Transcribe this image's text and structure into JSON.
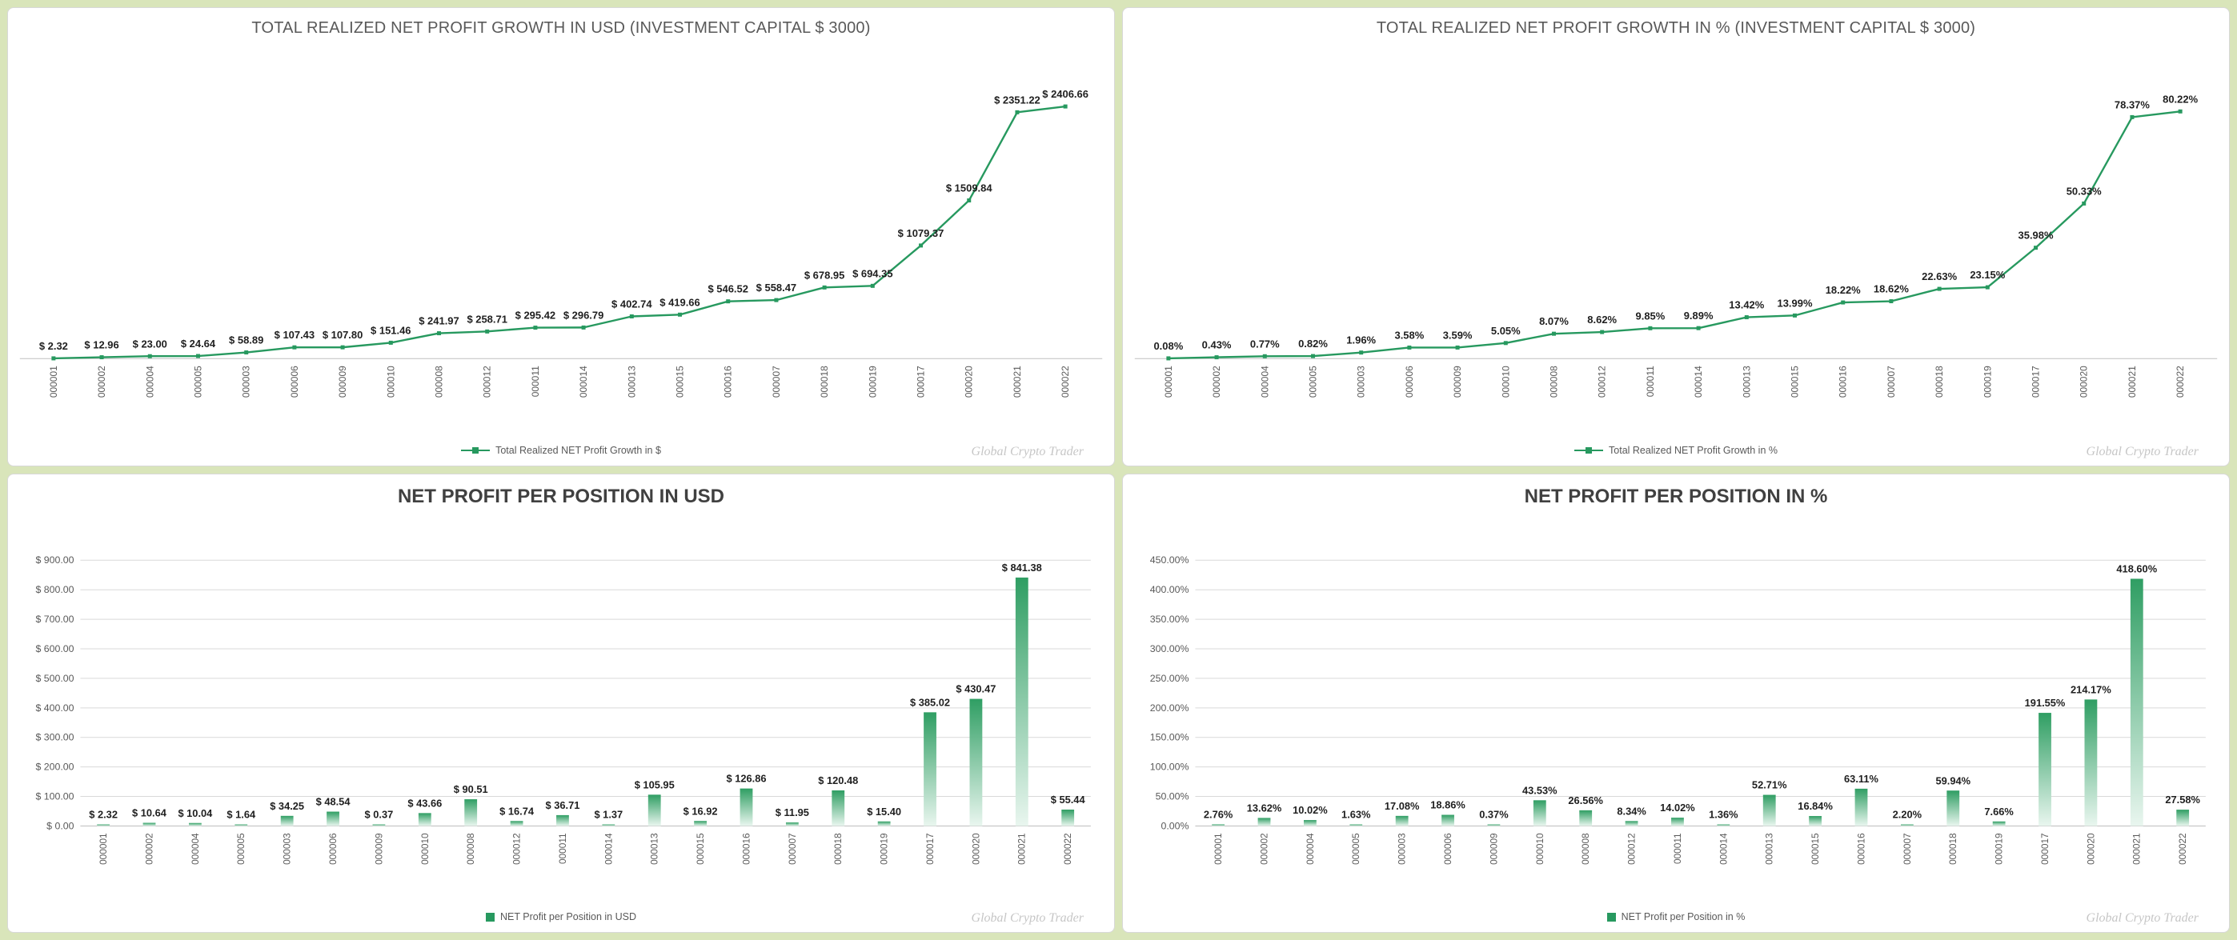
{
  "watermark": "Global Crypto Trader",
  "colors": {
    "accent_green": "#27995f",
    "bar_gradient_top": "#2f9e63",
    "bar_gradient_bottom": "#e9f6ef",
    "grid": "#d9d9d9",
    "axis": "#bfbfbf",
    "title_gray": "#595959",
    "label_dark": "#1f1f1f",
    "background": "#d9e5ba",
    "watermark_gray": "#c6c6c6"
  },
  "chart_data": [
    {
      "id": "total-growth-usd",
      "type": "line",
      "title": "TOTAL REALIZED NET PROFIT GROWTH IN USD (INVESTMENT CAPITAL $ 3000)",
      "legend_position": "bottom",
      "grid": false,
      "ylim": [
        0,
        2500
      ],
      "categories": [
        "000001",
        "000002",
        "000004",
        "000005",
        "000003",
        "000006",
        "000009",
        "000010",
        "000008",
        "000012",
        "000011",
        "000014",
        "000013",
        "000015",
        "000016",
        "000007",
        "000018",
        "000019",
        "000017",
        "000020",
        "000021",
        "000022"
      ],
      "series": [
        {
          "name": "Total Realized NET Profit Growth in $",
          "values": [
            2.32,
            12.96,
            23.0,
            24.64,
            58.89,
            107.43,
            107.8,
            151.46,
            241.97,
            258.71,
            295.42,
            296.79,
            402.74,
            419.66,
            546.52,
            558.47,
            678.95,
            694.35,
            1079.37,
            1509.84,
            2351.22,
            2406.66
          ]
        }
      ],
      "labels": [
        "$ 2.32",
        "$ 12.96",
        "$ 23.00",
        "$ 24.64",
        "$ 58.89",
        "$ 107.43",
        "$ 107.80",
        "$ 151.46",
        "$ 241.97",
        "$ 258.71",
        "$ 295.42",
        "$ 296.79",
        "$ 402.74",
        "$ 419.66",
        "$ 546.52",
        "$ 558.47",
        "$ 678.95",
        "$ 694.35",
        "$ 1079.37",
        "$ 1509.84",
        "$ 2351.22",
        "$ 2406.66"
      ]
    },
    {
      "id": "total-growth-pct",
      "type": "line",
      "title": "TOTAL REALIZED NET PROFIT GROWTH IN % (INVESTMENT CAPITAL $ 3000)",
      "legend_position": "bottom",
      "grid": false,
      "ylim": [
        0,
        85
      ],
      "categories": [
        "000001",
        "000002",
        "000004",
        "000005",
        "000003",
        "000006",
        "000009",
        "000010",
        "000008",
        "000012",
        "000011",
        "000014",
        "000013",
        "000015",
        "000016",
        "000007",
        "000018",
        "000019",
        "000017",
        "000020",
        "000021",
        "000022"
      ],
      "series": [
        {
          "name": "Total Realized NET Profit Growth in %",
          "values": [
            0.08,
            0.43,
            0.77,
            0.82,
            1.96,
            3.58,
            3.59,
            5.05,
            8.07,
            8.62,
            9.85,
            9.89,
            13.42,
            13.99,
            18.22,
            18.62,
            22.63,
            23.15,
            35.98,
            50.33,
            78.37,
            80.22
          ]
        }
      ],
      "labels": [
        "0.08%",
        "0.43%",
        "0.77%",
        "0.82%",
        "1.96%",
        "3.58%",
        "3.59%",
        "5.05%",
        "8.07%",
        "8.62%",
        "9.85%",
        "9.89%",
        "13.42%",
        "13.99%",
        "18.22%",
        "18.62%",
        "22.63%",
        "23.15%",
        "35.98%",
        "50.33%",
        "78.37%",
        "80.22%"
      ]
    },
    {
      "id": "profit-per-position-usd",
      "type": "bar",
      "title": "NET PROFIT PER POSITION IN USD",
      "legend_position": "bottom",
      "grid": true,
      "ylim": [
        0,
        900
      ],
      "yticks": [
        "$ 0.00",
        "$ 100.00",
        "$ 200.00",
        "$ 300.00",
        "$ 400.00",
        "$ 500.00",
        "$ 600.00",
        "$ 700.00",
        "$ 800.00",
        "$ 900.00"
      ],
      "categories": [
        "000001",
        "000002",
        "000004",
        "000005",
        "000003",
        "000006",
        "000009",
        "000010",
        "000008",
        "000012",
        "000011",
        "000014",
        "000013",
        "000015",
        "000016",
        "000007",
        "000018",
        "000019",
        "000017",
        "000020",
        "000021",
        "000022"
      ],
      "series": [
        {
          "name": "NET Profit per Position in USD",
          "values": [
            2.32,
            10.64,
            10.04,
            1.64,
            34.25,
            48.54,
            0.37,
            43.66,
            90.51,
            16.74,
            36.71,
            1.37,
            105.95,
            16.92,
            126.86,
            11.95,
            120.48,
            15.4,
            385.02,
            430.47,
            841.38,
            55.44
          ]
        }
      ],
      "labels": [
        "$ 2.32",
        "$ 10.64",
        "$ 10.04",
        "$ 1.64",
        "$ 34.25",
        "$ 48.54",
        "$ 0.37",
        "$ 43.66",
        "$ 90.51",
        "$ 16.74",
        "$ 36.71",
        "$ 1.37",
        "$ 105.95",
        "$ 16.92",
        "$ 126.86",
        "$ 11.95",
        "$ 120.48",
        "$ 15.40",
        "$ 385.02",
        "$ 430.47",
        "$ 841.38",
        "$ 55.44"
      ]
    },
    {
      "id": "profit-per-position-pct",
      "type": "bar",
      "title": "NET PROFIT PER POSITION IN %",
      "legend_position": "bottom",
      "grid": true,
      "ylim": [
        0,
        450
      ],
      "yticks": [
        "0.00%",
        "50.00%",
        "100.00%",
        "150.00%",
        "200.00%",
        "250.00%",
        "300.00%",
        "350.00%",
        "400.00%",
        "450.00%"
      ],
      "categories": [
        "000001",
        "000002",
        "000004",
        "000005",
        "000003",
        "000006",
        "000009",
        "000010",
        "000008",
        "000012",
        "000011",
        "000014",
        "000013",
        "000015",
        "000016",
        "000007",
        "000018",
        "000019",
        "000017",
        "000020",
        "000021",
        "000022"
      ],
      "series": [
        {
          "name": "NET Profit per Position in %",
          "values": [
            2.76,
            13.62,
            10.02,
            1.63,
            17.08,
            18.86,
            0.37,
            43.53,
            26.56,
            8.34,
            14.02,
            1.36,
            52.71,
            16.84,
            63.11,
            2.2,
            59.94,
            7.66,
            191.55,
            214.17,
            418.6,
            27.58
          ]
        }
      ],
      "labels": [
        "2.76%",
        "13.62%",
        "10.02%",
        "1.63%",
        "17.08%",
        "18.86%",
        "0.37%",
        "43.53%",
        "26.56%",
        "8.34%",
        "14.02%",
        "1.36%",
        "52.71%",
        "16.84%",
        "63.11%",
        "2.20%",
        "59.94%",
        "7.66%",
        "191.55%",
        "214.17%",
        "418.60%",
        "27.58%"
      ]
    }
  ]
}
